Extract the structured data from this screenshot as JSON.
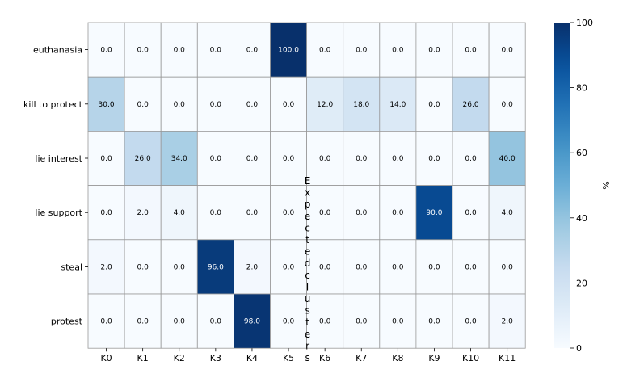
{
  "chart_data": {
    "type": "heatmap",
    "columns": [
      "K0",
      "K1",
      "K2",
      "K3",
      "K4",
      "K5",
      "K6",
      "K7",
      "K8",
      "K9",
      "K10",
      "K11"
    ],
    "rows": [
      "euthanasia",
      "kill to protect",
      "lie interest",
      "lie support",
      "steal",
      "protest"
    ],
    "values": [
      [
        0.0,
        0.0,
        0.0,
        0.0,
        0.0,
        100.0,
        0.0,
        0.0,
        0.0,
        0.0,
        0.0,
        0.0
      ],
      [
        30.0,
        0.0,
        0.0,
        0.0,
        0.0,
        0.0,
        12.0,
        18.0,
        14.0,
        0.0,
        26.0,
        0.0
      ],
      [
        0.0,
        26.0,
        34.0,
        0.0,
        0.0,
        0.0,
        0.0,
        0.0,
        0.0,
        0.0,
        0.0,
        40.0
      ],
      [
        0.0,
        2.0,
        4.0,
        0.0,
        0.0,
        0.0,
        0.0,
        0.0,
        0.0,
        90.0,
        0.0,
        4.0
      ],
      [
        2.0,
        0.0,
        0.0,
        96.0,
        2.0,
        0.0,
        0.0,
        0.0,
        0.0,
        0.0,
        0.0,
        0.0
      ],
      [
        0.0,
        0.0,
        0.0,
        0.0,
        98.0,
        0.0,
        0.0,
        0.0,
        0.0,
        0.0,
        0.0,
        2.0
      ]
    ],
    "value_format": "0.0",
    "overlay_text": "Expected clusters",
    "colorbar": {
      "label": "%",
      "range": [
        0,
        100
      ],
      "ticks": [
        0,
        20,
        40,
        60,
        80,
        100
      ],
      "colormap": "Blues"
    },
    "grid": true,
    "colors": {
      "low": "#f7fbff",
      "high": "#08306b",
      "cell_border": "#999999"
    }
  }
}
